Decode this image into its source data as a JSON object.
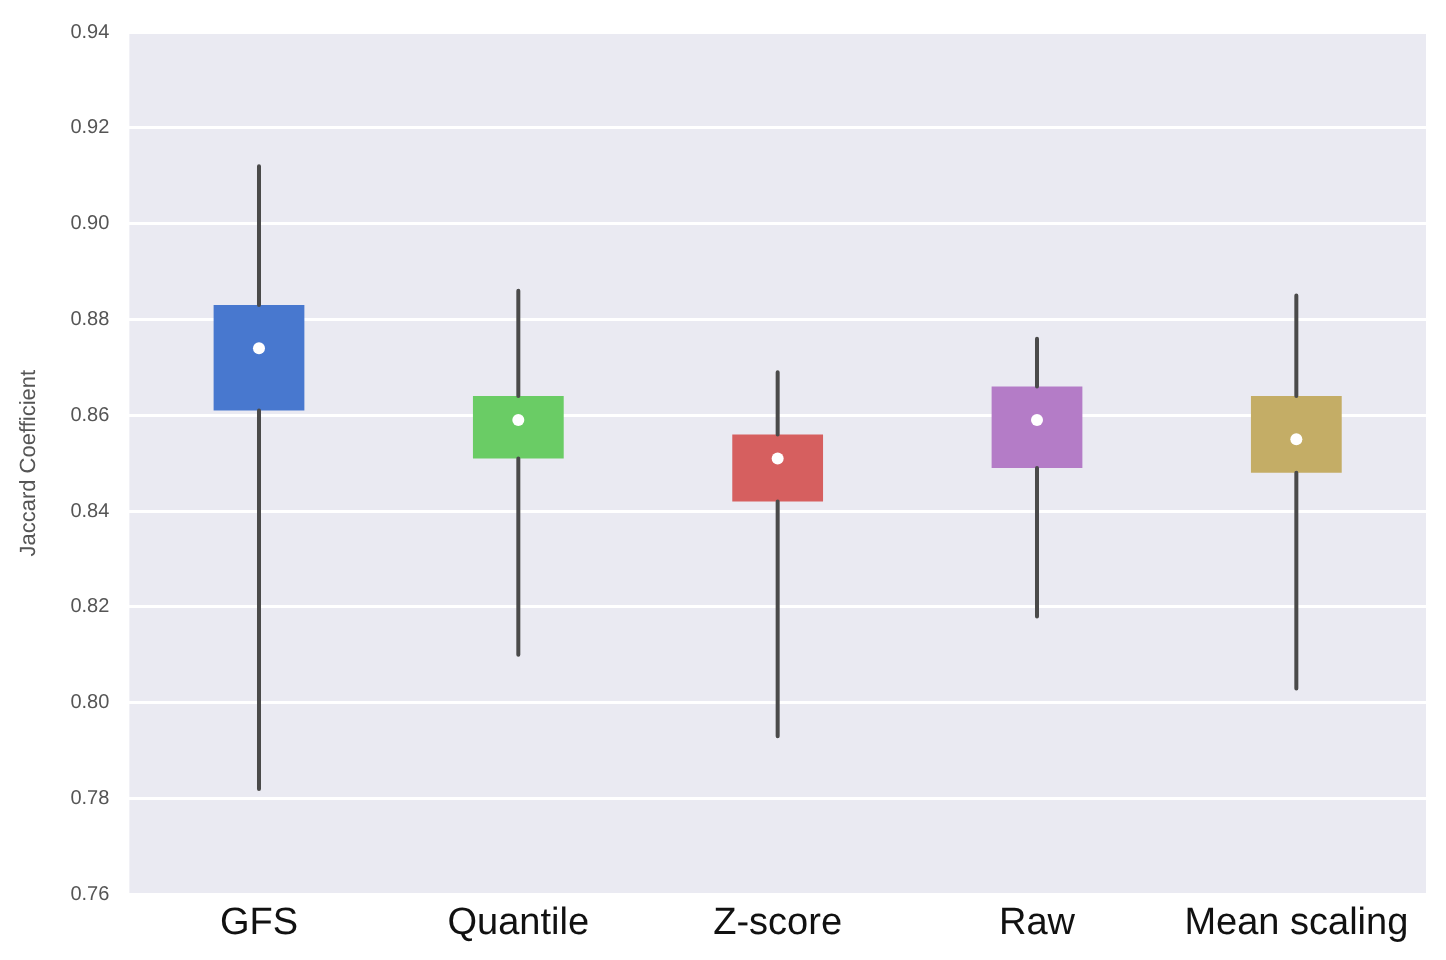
{
  "chart_data": {
    "type": "box",
    "ylabel": "Jaccard Coefficient",
    "categories": [
      "GFS",
      "Quantile",
      "Z-score",
      "Raw",
      "Mean scaling"
    ],
    "colors": [
      "#4878cf",
      "#6acc65",
      "#d65f5f",
      "#b47cc7",
      "#c4ad66"
    ],
    "boxes": [
      {
        "low": 0.782,
        "q1": 0.861,
        "median": 0.874,
        "q3": 0.883,
        "high": 0.912
      },
      {
        "low": 0.81,
        "q1": 0.851,
        "median": 0.859,
        "q3": 0.864,
        "high": 0.886
      },
      {
        "low": 0.793,
        "q1": 0.842,
        "median": 0.851,
        "q3": 0.856,
        "high": 0.869
      },
      {
        "low": 0.818,
        "q1": 0.849,
        "median": 0.859,
        "q3": 0.866,
        "high": 0.876
      },
      {
        "low": 0.803,
        "q1": 0.848,
        "median": 0.855,
        "q3": 0.864,
        "high": 0.885
      }
    ],
    "ylim": [
      0.76,
      0.94
    ],
    "yticks": [
      {
        "value": 0.76,
        "label": "0.76"
      },
      {
        "value": 0.78,
        "label": "0.78"
      },
      {
        "value": 0.8,
        "label": "0.80"
      },
      {
        "value": 0.82,
        "label": "0.82"
      },
      {
        "value": 0.84,
        "label": "0.84"
      },
      {
        "value": 0.86,
        "label": "0.86"
      },
      {
        "value": 0.88,
        "label": "0.88"
      },
      {
        "value": 0.9,
        "label": "0.90"
      },
      {
        "value": 0.92,
        "label": "0.92"
      },
      {
        "value": 0.94,
        "label": "0.94"
      }
    ],
    "grid": "y"
  }
}
